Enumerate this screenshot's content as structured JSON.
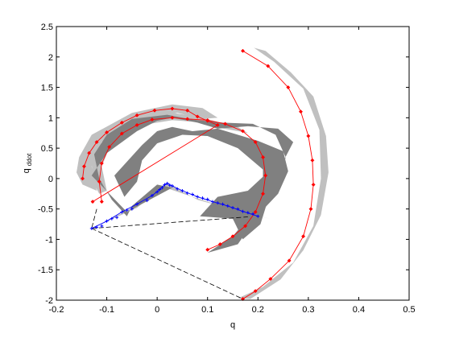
{
  "chart_data": {
    "type": "scatter",
    "title": "",
    "xlabel": "q",
    "ylabel": {
      "main": "q",
      "sub": "ddot"
    },
    "xlim": [
      -0.2,
      0.5
    ],
    "ylim": [
      -2,
      2.5
    ],
    "xticks": [
      -0.2,
      -0.1,
      0,
      0.1,
      0.2,
      0.3,
      0.4,
      0.5
    ],
    "yticks": [
      -2,
      -1.5,
      -1,
      -0.5,
      0,
      0.5,
      1,
      1.5,
      2,
      2.5
    ],
    "xtick_labels": [
      "-0.2",
      "-0.1",
      "0",
      "0.1",
      "0.2",
      "0.3",
      "0.4",
      "0.5"
    ],
    "ytick_labels": [
      "-2",
      "-1.5",
      "-1",
      "-0.5",
      "0",
      "0.5",
      "1",
      "1.5",
      "2",
      "2.5"
    ],
    "grid": false,
    "legend": "none",
    "colors": {
      "light_band": "#c0c0c0",
      "dark_band": "#808080",
      "red_trajectory": "#ff0000",
      "blue_trajectory": "#0000ff",
      "dashed_connector": "#000000"
    },
    "regions": [
      {
        "shade": "light",
        "polygon": [
          [
            -0.155,
            0.35
          ],
          [
            -0.13,
            0.72
          ],
          [
            -0.05,
            1.08
          ],
          [
            0.03,
            1.22
          ],
          [
            0.09,
            1.16
          ],
          [
            0.12,
            1.0
          ],
          [
            0.09,
            0.98
          ],
          [
            0.04,
            1.08
          ],
          [
            -0.04,
            0.95
          ],
          [
            -0.11,
            0.6
          ],
          [
            -0.13,
            0.2
          ],
          [
            -0.12,
            -0.2
          ],
          [
            -0.148,
            -0.1
          ],
          [
            -0.16,
            0.1
          ]
        ]
      },
      {
        "shade": "light",
        "polygon": [
          [
            -0.13,
            0.28
          ],
          [
            -0.1,
            0.7
          ],
          [
            -0.04,
            1.0
          ],
          [
            0.03,
            1.08
          ],
          [
            0.08,
            1.02
          ],
          [
            0.16,
            0.85
          ],
          [
            0.18,
            0.75
          ],
          [
            0.12,
            0.84
          ],
          [
            0.08,
            0.93
          ],
          [
            0.03,
            0.96
          ],
          [
            -0.03,
            0.88
          ],
          [
            -0.09,
            0.6
          ],
          [
            -0.11,
            0.2
          ],
          [
            -0.1,
            -0.2
          ],
          [
            -0.115,
            -0.25
          ],
          [
            -0.128,
            -0.05
          ]
        ]
      },
      {
        "shade": "light",
        "polygon": [
          [
            0.192,
            2.15
          ],
          [
            0.232,
            1.92
          ],
          [
            0.29,
            1.48
          ],
          [
            0.322,
            0.8
          ],
          [
            0.325,
            0.0
          ],
          [
            0.31,
            -0.78
          ],
          [
            0.27,
            -1.38
          ],
          [
            0.21,
            -1.78
          ],
          [
            0.16,
            -1.97
          ],
          [
            0.185,
            -1.98
          ],
          [
            0.245,
            -1.66
          ],
          [
            0.29,
            -1.18
          ],
          [
            0.325,
            -0.6
          ],
          [
            0.34,
            0.1
          ],
          [
            0.335,
            0.7
          ],
          [
            0.31,
            1.35
          ],
          [
            0.265,
            1.75
          ],
          [
            0.215,
            2.1
          ]
        ]
      },
      {
        "shade": "light",
        "polygon": [
          [
            -0.135,
            -0.84
          ],
          [
            -0.04,
            -0.48
          ],
          [
            0.02,
            -0.08
          ],
          [
            0.08,
            -0.35
          ],
          [
            0.19,
            -0.6
          ],
          [
            0.225,
            -0.66
          ],
          [
            0.17,
            -0.56
          ],
          [
            0.07,
            -0.3
          ],
          [
            0.02,
            -0.16
          ],
          [
            -0.05,
            -0.48
          ],
          [
            -0.11,
            -0.74
          ]
        ]
      },
      {
        "shade": "dark",
        "polygon": [
          [
            -0.13,
            0.05
          ],
          [
            -0.1,
            0.42
          ],
          [
            -0.04,
            0.78
          ],
          [
            0.0,
            0.95
          ],
          [
            0.03,
            1.0
          ],
          [
            0.08,
            0.92
          ],
          [
            0.12,
            0.82
          ],
          [
            0.18,
            0.86
          ],
          [
            0.24,
            0.82
          ],
          [
            0.27,
            0.6
          ],
          [
            0.25,
            0.28
          ],
          [
            0.21,
            0.03
          ],
          [
            0.18,
            -0.2
          ],
          [
            0.12,
            -0.3
          ],
          [
            0.085,
            -0.62
          ],
          [
            0.15,
            -0.66
          ],
          [
            0.17,
            -1.0
          ],
          [
            0.205,
            -0.75
          ],
          [
            0.22,
            -0.35
          ],
          [
            0.245,
            0.0
          ],
          [
            0.255,
            0.35
          ],
          [
            0.235,
            0.72
          ],
          [
            0.19,
            0.9
          ],
          [
            0.13,
            0.92
          ],
          [
            0.07,
            0.97
          ],
          [
            0.02,
            1.05
          ],
          [
            -0.05,
            0.98
          ],
          [
            -0.1,
            0.72
          ],
          [
            -0.125,
            0.4
          ],
          [
            -0.115,
            0.0
          ],
          [
            -0.09,
            -0.35
          ],
          [
            -0.06,
            -0.62
          ],
          [
            -0.05,
            -0.45
          ],
          [
            0.0,
            -0.1
          ],
          [
            0.03,
            -0.15
          ],
          [
            -0.06,
            -0.55
          ]
        ]
      },
      {
        "shade": "dark",
        "polygon": [
          [
            -0.085,
            0.05
          ],
          [
            -0.03,
            0.55
          ],
          [
            0.0,
            0.78
          ],
          [
            0.03,
            0.85
          ],
          [
            0.07,
            0.78
          ],
          [
            0.12,
            0.82
          ],
          [
            0.2,
            0.62
          ],
          [
            0.25,
            0.45
          ],
          [
            0.26,
            0.12
          ],
          [
            0.24,
            -0.25
          ],
          [
            0.2,
            -0.6
          ],
          [
            0.16,
            -1.08
          ],
          [
            0.1,
            -1.22
          ],
          [
            0.15,
            -0.95
          ],
          [
            0.19,
            -0.55
          ],
          [
            0.21,
            -0.2
          ],
          [
            0.21,
            0.15
          ],
          [
            0.16,
            0.5
          ],
          [
            0.1,
            0.7
          ],
          [
            0.05,
            0.72
          ],
          [
            0.0,
            0.58
          ],
          [
            -0.03,
            0.3
          ],
          [
            -0.04,
            -0.05
          ],
          [
            -0.065,
            -0.3
          ]
        ]
      }
    ],
    "series": [
      {
        "color": "red",
        "marker": "diamond",
        "points": [
          [
            0.17,
            2.1
          ],
          [
            0.22,
            1.85
          ],
          [
            0.26,
            1.5
          ],
          [
            0.285,
            1.1
          ],
          [
            0.3,
            0.7
          ],
          [
            0.308,
            0.3
          ],
          [
            0.31,
            -0.1
          ],
          [
            0.305,
            -0.5
          ],
          [
            0.29,
            -0.95
          ],
          [
            0.262,
            -1.35
          ],
          [
            0.225,
            -1.65
          ],
          [
            0.195,
            -1.85
          ],
          [
            0.17,
            -1.98
          ]
        ]
      },
      {
        "color": "red",
        "marker": "diamond",
        "points": [
          [
            -0.148,
            0.0
          ],
          [
            -0.145,
            0.2
          ],
          [
            -0.135,
            0.42
          ],
          [
            -0.12,
            0.6
          ],
          [
            -0.1,
            0.76
          ],
          [
            -0.07,
            0.92
          ],
          [
            -0.04,
            1.04
          ],
          [
            -0.005,
            1.12
          ],
          [
            0.03,
            1.15
          ],
          [
            0.06,
            1.12
          ],
          [
            0.08,
            1.02
          ],
          [
            0.1,
            0.95
          ],
          [
            0.12,
            0.88
          ],
          [
            -0.128,
            -0.38
          ]
        ]
      },
      {
        "color": "red",
        "marker": "diamond",
        "points": [
          [
            -0.11,
            -0.38
          ],
          [
            -0.115,
            -0.05
          ],
          [
            -0.11,
            0.25
          ],
          [
            -0.095,
            0.52
          ],
          [
            -0.07,
            0.74
          ],
          [
            -0.04,
            0.88
          ],
          [
            -0.01,
            0.97
          ],
          [
            0.03,
            1.0
          ],
          [
            0.06,
            0.98
          ],
          [
            0.1,
            0.96
          ],
          [
            0.135,
            0.9
          ],
          [
            0.17,
            0.78
          ],
          [
            0.195,
            0.6
          ],
          [
            0.21,
            0.35
          ],
          [
            0.215,
            0.05
          ],
          [
            0.21,
            -0.25
          ],
          [
            0.195,
            -0.55
          ],
          [
            0.175,
            -0.78
          ],
          [
            0.15,
            -0.95
          ],
          [
            0.125,
            -1.08
          ],
          [
            0.1,
            -1.17
          ]
        ]
      },
      {
        "color": "blue",
        "marker": "plus",
        "points": [
          [
            -0.13,
            -0.82
          ],
          [
            -0.1,
            -0.7
          ],
          [
            -0.07,
            -0.55
          ],
          [
            -0.04,
            -0.42
          ],
          [
            -0.01,
            -0.28
          ],
          [
            0.005,
            -0.18
          ],
          [
            0.015,
            -0.1
          ],
          [
            0.02,
            -0.08
          ],
          [
            0.03,
            -0.12
          ],
          [
            0.05,
            -0.2
          ],
          [
            0.08,
            -0.3
          ],
          [
            0.11,
            -0.38
          ],
          [
            0.14,
            -0.45
          ],
          [
            0.17,
            -0.54
          ],
          [
            0.2,
            -0.62
          ],
          [
            -0.11,
            -0.78
          ],
          [
            -0.08,
            -0.64
          ],
          [
            -0.05,
            -0.5
          ],
          [
            -0.02,
            -0.36
          ],
          [
            0.0,
            -0.22
          ],
          [
            0.01,
            -0.15
          ],
          [
            0.04,
            -0.17
          ],
          [
            0.07,
            -0.26
          ],
          [
            0.1,
            -0.34
          ],
          [
            0.13,
            -0.42
          ],
          [
            0.16,
            -0.5
          ],
          [
            0.19,
            -0.58
          ],
          [
            0.025,
            -0.11
          ],
          [
            0.06,
            -0.24
          ],
          [
            0.09,
            -0.32
          ],
          [
            0.12,
            -0.4
          ],
          [
            0.15,
            -0.48
          ],
          [
            0.18,
            -0.56
          ],
          [
            -0.06,
            -0.52
          ],
          [
            -0.09,
            -0.66
          ],
          [
            -0.12,
            -0.8
          ]
        ]
      }
    ],
    "connectors": [
      {
        "style": "dashed",
        "points": [
          [
            -0.13,
            -0.82
          ],
          [
            0.18,
            -0.63
          ]
        ]
      },
      {
        "style": "dashed",
        "points": [
          [
            -0.13,
            -0.82
          ],
          [
            0.17,
            -1.98
          ]
        ]
      },
      {
        "style": "dashed",
        "points": [
          [
            -0.12,
            -0.5
          ],
          [
            -0.13,
            -0.82
          ]
        ]
      }
    ]
  }
}
